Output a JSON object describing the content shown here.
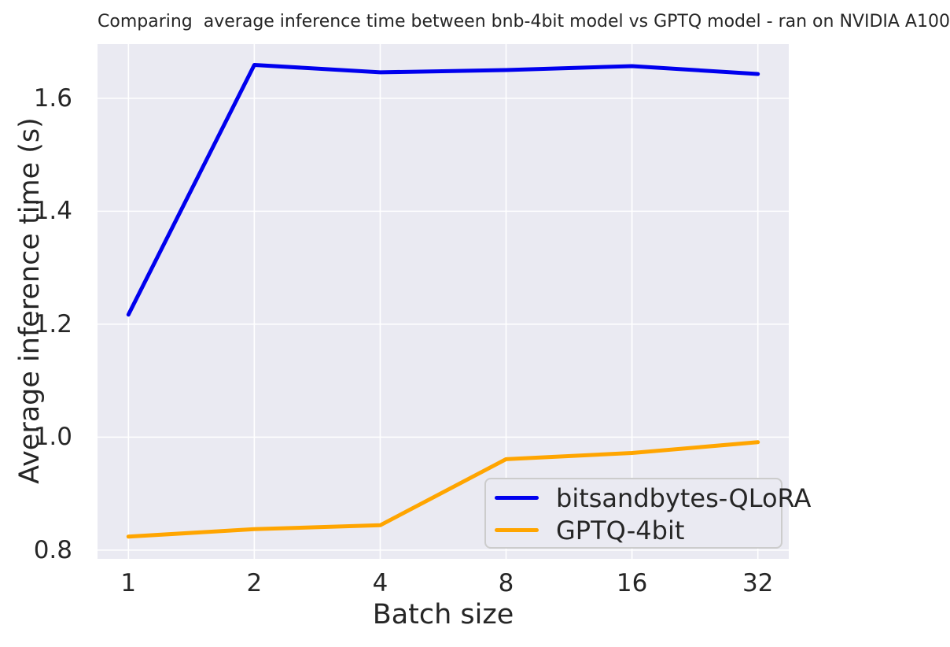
{
  "chart_data": {
    "type": "line",
    "title": "Comparing  average inference time between bnb-4bit model vs GPTQ model - ran on NVIDIA A100",
    "xlabel": "Batch size",
    "ylabel": "Average inference time (s)",
    "categories": [
      "1",
      "2",
      "4",
      "8",
      "16",
      "32"
    ],
    "series": [
      {
        "name": "bitsandbytes-QLoRA",
        "color": "#0000ee",
        "values": [
          1.217,
          1.659,
          1.646,
          1.65,
          1.657,
          1.643
        ]
      },
      {
        "name": "GPTQ-4bit",
        "color": "#ffa500",
        "values": [
          0.824,
          0.837,
          0.844,
          0.961,
          0.972,
          0.991
        ]
      }
    ],
    "yticks": [
      "0.8",
      "1.0",
      "1.2",
      "1.4",
      "1.6"
    ],
    "ylim": [
      0.7845,
      1.696
    ],
    "grid": true,
    "legend_position": "lower right",
    "plot_bg_color": "#eaeaf2",
    "grid_color": "#ffffff",
    "text_color": "#262626"
  }
}
